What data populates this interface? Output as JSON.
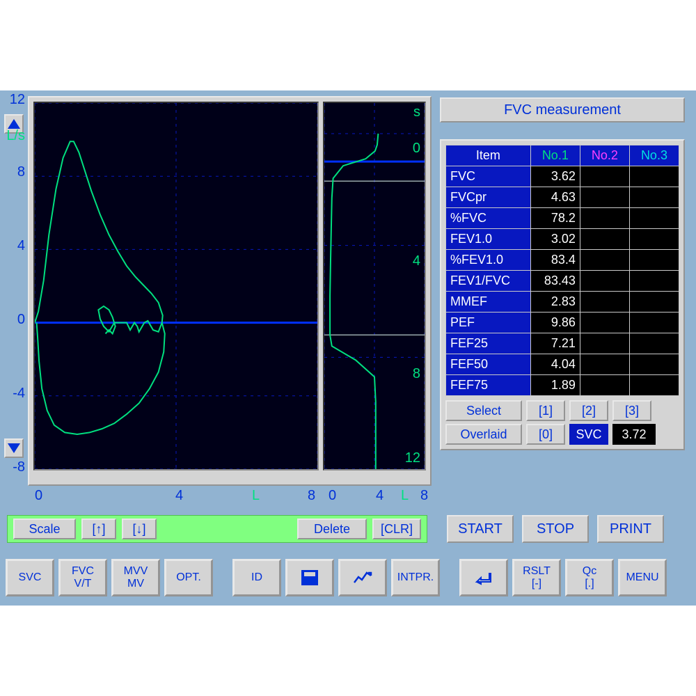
{
  "title": "FVC measurement",
  "colors": {
    "bg_app": "#91b3d1",
    "panel": "#d4d4d4",
    "plot_bg": "#000018",
    "grid": "#0818c0",
    "axis_solid": "#0030ff",
    "trace": "#00e080",
    "tick_text": "#0030d8",
    "table_blue": "#0818c0",
    "mid_bar": "#80ff80",
    "header_green": "#00e080",
    "header_magenta": "#ff40ff",
    "header_cyan": "#00e0e0"
  },
  "chart_main": {
    "type": "line",
    "y_label": "L/s",
    "y_ticks": [
      12,
      8,
      4,
      0,
      -4,
      -8
    ],
    "ylim": [
      -8,
      12
    ],
    "x_label": "L",
    "x_ticks": [
      0,
      4,
      8
    ],
    "xlim": [
      0,
      8
    ],
    "grid_step_y": 4,
    "grid_step_x": 4,
    "zero_line_y": 0,
    "trace_color": "#00e080",
    "line_width": 2,
    "points": [
      [
        0.0,
        0.0
      ],
      [
        0.1,
        0.6
      ],
      [
        0.25,
        2.3
      ],
      [
        0.4,
        4.8
      ],
      [
        0.6,
        7.3
      ],
      [
        0.8,
        9.0
      ],
      [
        1.0,
        9.9
      ],
      [
        1.1,
        9.9
      ],
      [
        1.25,
        9.3
      ],
      [
        1.4,
        8.4
      ],
      [
        1.6,
        7.2
      ],
      [
        1.85,
        5.9
      ],
      [
        2.1,
        4.8
      ],
      [
        2.35,
        3.9
      ],
      [
        2.6,
        3.1
      ],
      [
        2.85,
        2.5
      ],
      [
        3.1,
        2.0
      ],
      [
        3.3,
        1.6
      ],
      [
        3.5,
        1.1
      ],
      [
        3.62,
        0.4
      ],
      [
        3.6,
        0.0
      ],
      [
        3.5,
        -0.5
      ],
      [
        3.35,
        -0.4
      ],
      [
        3.2,
        0.1
      ],
      [
        3.1,
        0.0
      ],
      [
        2.95,
        -0.5
      ],
      [
        2.9,
        -0.2
      ],
      [
        2.82,
        0.0
      ],
      [
        2.7,
        -0.4
      ],
      [
        2.6,
        0.0
      ],
      [
        2.4,
        0.0
      ],
      [
        2.25,
        0.0
      ]
    ],
    "loop_inner": [
      [
        2.25,
        0.0
      ],
      [
        2.1,
        -0.5
      ],
      [
        1.95,
        -0.2
      ],
      [
        1.85,
        0.2
      ],
      [
        1.8,
        0.7
      ],
      [
        1.95,
        0.9
      ],
      [
        2.1,
        0.7
      ],
      [
        2.2,
        0.3
      ],
      [
        2.28,
        -0.2
      ],
      [
        2.2,
        -0.6
      ],
      [
        2.1,
        -0.4
      ],
      [
        2.0,
        -0.6
      ]
    ],
    "inhale_path": [
      [
        0.05,
        0.0
      ],
      [
        0.08,
        -0.8
      ],
      [
        0.12,
        -2.1
      ],
      [
        0.2,
        -3.6
      ],
      [
        0.35,
        -4.8
      ],
      [
        0.55,
        -5.6
      ],
      [
        0.85,
        -6.0
      ],
      [
        1.2,
        -6.1
      ],
      [
        1.55,
        -6.0
      ],
      [
        1.9,
        -5.8
      ],
      [
        2.25,
        -5.5
      ],
      [
        2.6,
        -5.0
      ],
      [
        2.95,
        -4.4
      ],
      [
        3.25,
        -3.6
      ],
      [
        3.5,
        -2.7
      ],
      [
        3.65,
        -1.6
      ],
      [
        3.68,
        -0.6
      ],
      [
        3.6,
        0.0
      ]
    ]
  },
  "chart_side": {
    "type": "line",
    "y_label": "s",
    "y_ticks": [
      0,
      4,
      8,
      12
    ],
    "ylim": [
      0,
      12
    ],
    "x_ticks": [
      0,
      4,
      8
    ],
    "x_label": "L",
    "xlim": [
      0,
      8
    ],
    "trace_color": "#00e080",
    "line_width": 2,
    "hlines_light": [
      1.7,
      7.2
    ],
    "hline_blue": 1.0,
    "points": [
      [
        4.1,
        12.0
      ],
      [
        4.1,
        10.8
      ],
      [
        4.1,
        9.6
      ],
      [
        4.0,
        8.7
      ],
      [
        2.5,
        8.1
      ],
      [
        0.6,
        7.6
      ],
      [
        0.45,
        7.2
      ],
      [
        0.45,
        5.8
      ],
      [
        0.5,
        4.5
      ],
      [
        0.55,
        3.4
      ],
      [
        0.6,
        2.3
      ],
      [
        0.7,
        1.6
      ],
      [
        1.5,
        1.15
      ],
      [
        3.3,
        0.9
      ],
      [
        4.05,
        0.62
      ],
      [
        4.22,
        0.4
      ],
      [
        4.3,
        0.0
      ]
    ]
  },
  "table": {
    "header": {
      "c0": "Item",
      "c1": "No.1",
      "c2": "No.2",
      "c3": "No.3"
    },
    "rows": [
      {
        "item": "FVC",
        "v1": "3.62",
        "v2": "",
        "v3": ""
      },
      {
        "item": "FVCpr",
        "v1": "4.63",
        "v2": "",
        "v3": ""
      },
      {
        "item": "%FVC",
        "v1": "78.2",
        "v2": "",
        "v3": ""
      },
      {
        "item": "FEV1.0",
        "v1": "3.02",
        "v2": "",
        "v3": ""
      },
      {
        "item": "%FEV1.0",
        "v1": "83.4",
        "v2": "",
        "v3": ""
      },
      {
        "item": "FEV1/FVC",
        "v1": "83.43",
        "v2": "",
        "v3": ""
      },
      {
        "item": "MMEF",
        "v1": "2.83",
        "v2": "",
        "v3": ""
      },
      {
        "item": "PEF",
        "v1": "9.86",
        "v2": "",
        "v3": ""
      },
      {
        "item": "FEF25",
        "v1": "7.21",
        "v2": "",
        "v3": ""
      },
      {
        "item": "FEF50",
        "v1": "4.04",
        "v2": "",
        "v3": ""
      },
      {
        "item": "FEF75",
        "v1": "1.89",
        "v2": "",
        "v3": ""
      }
    ]
  },
  "selectors": {
    "select_label": "Select",
    "btn1": "[1]",
    "btn2": "[2]",
    "btn3": "[3]",
    "overlaid_label": "Overlaid",
    "btn0": "[0]",
    "svc_label": "SVC",
    "svc_value": "3.72"
  },
  "mid_toolbar": {
    "scale": "Scale",
    "up": "[↑]",
    "down": "[↓]",
    "delete": "Delete",
    "clr": "[CLR]"
  },
  "right_mid": {
    "start": "START",
    "stop": "STOP",
    "print": "PRINT"
  },
  "bottom_toolbar": {
    "svc": "SVC",
    "fvc1": "FVC",
    "fvc2": "V/T",
    "mvv1": "MVV",
    "mvv2": "MV",
    "opt": "OPT.",
    "id": "ID",
    "intpr": "INTPR.",
    "rslt1": "RSLT",
    "rslt2": "[-]",
    "qc1": "Qc",
    "qc2": "[.]",
    "menu": "MENU"
  }
}
